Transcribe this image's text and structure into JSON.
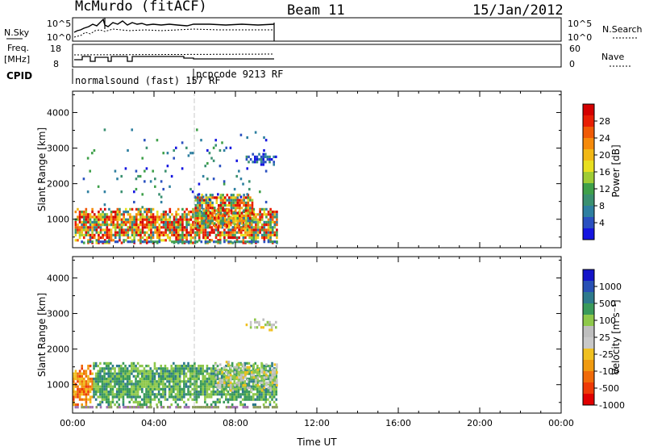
{
  "header": {
    "title": "McMurdo (fitACF)",
    "beam": "Beam 11",
    "date": "15/Jan/2012"
  },
  "params": {
    "nsky_label": "N.Sky",
    "nsky_ticks": [
      "10^5",
      "10^0"
    ],
    "nsearch_label": "N.Search",
    "nsearch_ticks": [
      "10^5",
      "10^0"
    ],
    "freq_label": "Freq.",
    "freq_unit": "[MHz]",
    "freq_ticks": [
      "18",
      "8"
    ],
    "nave_label": "Nave",
    "nave_ticks": [
      "60",
      "0"
    ],
    "cpid_label": "CPID",
    "cpid_entries": [
      "normalsound (fast) 157 RF",
      "pcpcode 9213 RF"
    ]
  },
  "chart_data": [
    {
      "type": "heatmap",
      "panel": "power",
      "ylabel": "Slant Range [km]",
      "xlabel": "",
      "ylim": [
        200,
        4600
      ],
      "yticks": [
        "1000",
        "2000",
        "3000",
        "4000"
      ],
      "xticks": [
        "00:00",
        "04:00",
        "08:00",
        "12:00",
        "16:00",
        "20:00",
        "00:00"
      ],
      "colorbar_label": "Power [dB]",
      "colorbar_ticks": [
        "4",
        "8",
        "12",
        "16",
        "20",
        "24",
        "28"
      ],
      "colorbar_colors": [
        "#1515e0",
        "#2a50c0",
        "#2e7fa0",
        "#3a9070",
        "#3fa04a",
        "#9fcc35",
        "#e8df20",
        "#f2b815",
        "#f58a0b",
        "#f05a06",
        "#e81e04",
        "#d40000"
      ],
      "observation_end_hour": 10,
      "echo_regions": [
        {
          "t": [
            0.1,
            10.0
          ],
          "range": [
            300,
            1300
          ],
          "level": "strong"
        },
        {
          "t": [
            6.0,
            8.8
          ],
          "range": [
            700,
            1700
          ],
          "level": "strong"
        },
        {
          "t": [
            8.5,
            10.0
          ],
          "range": [
            2500,
            2800
          ],
          "level": "weak"
        },
        {
          "t": [
            0.5,
            9.5
          ],
          "range": [
            1300,
            3500
          ],
          "level": "scattered"
        }
      ]
    },
    {
      "type": "heatmap",
      "panel": "velocity",
      "ylabel": "Slant Range [km]",
      "xlabel": "Time UT",
      "ylim": [
        200,
        4600
      ],
      "yticks": [
        "1000",
        "2000",
        "3000",
        "4000"
      ],
      "xticks": [
        "00:00",
        "04:00",
        "08:00",
        "12:00",
        "16:00",
        "20:00",
        "00:00"
      ],
      "colorbar_label": "Velocity [m s⁻¹]",
      "colorbar_ticks": [
        "1000",
        "500",
        "100",
        "25",
        "-25",
        "-100",
        "-500",
        "-1000"
      ],
      "colorbar_colors": [
        "#1414c8",
        "#2850b4",
        "#2e7a8c",
        "#3a9a5a",
        "#8ec84a",
        "#bebebe",
        "#c8c8c8",
        "#f0c020",
        "#f09a10",
        "#f06a08",
        "#ee3a06",
        "#e00000"
      ],
      "observation_end_hour": 10,
      "echo_regions": [
        {
          "t": [
            0.0,
            1.0
          ],
          "range": [
            400,
            1500
          ],
          "level": "negative"
        },
        {
          "t": [
            1.0,
            10.0
          ],
          "range": [
            400,
            1600
          ],
          "level": "positive"
        },
        {
          "t": [
            7.0,
            10.0
          ],
          "range": [
            800,
            1600
          ],
          "level": "near-zero"
        },
        {
          "t": [
            8.5,
            10.0
          ],
          "range": [
            2500,
            2800
          ],
          "level": "near-zero"
        }
      ]
    }
  ]
}
